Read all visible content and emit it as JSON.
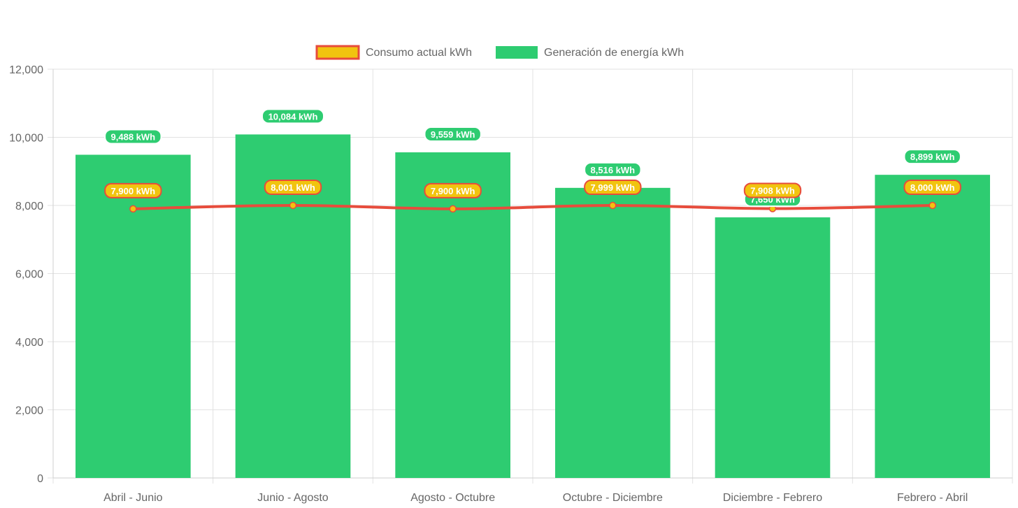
{
  "chart_data": {
    "type": "bar",
    "categories": [
      "Abril - Junio",
      "Junio - Agosto",
      "Agosto - Octubre",
      "Octubre - Diciembre",
      "Diciembre - Febrero",
      "Febrero - Abril"
    ],
    "series": [
      {
        "name": "Consumo actual kWh",
        "type": "line",
        "values": [
          7900,
          8001,
          7900,
          7999,
          7908,
          8000
        ],
        "labels": [
          "7,900 kWh",
          "8,001 kWh",
          "7,900 kWh",
          "7,999 kWh",
          "7,908 kWh",
          "8,000 kWh"
        ],
        "color": "#e74c3c",
        "fill_color": "#f1c40f"
      },
      {
        "name": "Generación de energía kWh",
        "type": "bar",
        "values": [
          9488,
          10084,
          9559,
          8516,
          7650,
          8899
        ],
        "labels": [
          "9,488 kWh",
          "10,084 kWh",
          "9,559 kWh",
          "8,516 kWh",
          "7,650 kWh",
          "8,899 kWh"
        ],
        "color": "#2ecc71"
      }
    ],
    "y_ticks": [
      "0",
      "2,000",
      "4,000",
      "6,000",
      "8,000",
      "10,000",
      "12,000"
    ],
    "ylim": [
      0,
      12000
    ],
    "grid": true,
    "legend_position": "top-center",
    "title": "",
    "xlabel": "",
    "ylabel": ""
  }
}
